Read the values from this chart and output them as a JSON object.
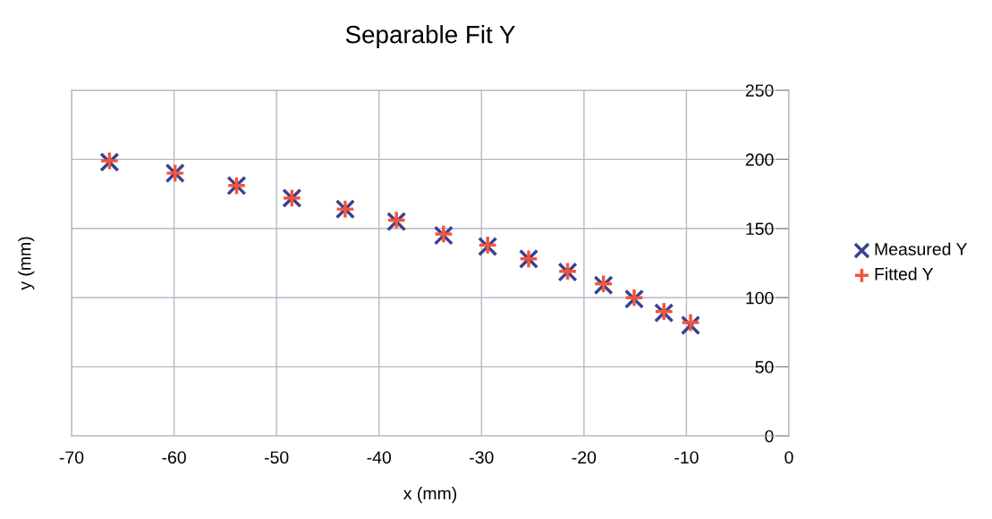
{
  "chart_data": {
    "type": "scatter",
    "title": "Separable Fit Y",
    "xlabel": "x (mm)",
    "ylabel": "y (mm)",
    "x": [
      -66.3,
      -59.9,
      -53.9,
      -48.5,
      -43.3,
      -38.3,
      -33.7,
      -29.4,
      -25.4,
      -21.6,
      -18.1,
      -15.1,
      -12.2,
      -9.6
    ],
    "series": [
      {
        "name": "Measured Y",
        "color": "#3b4190",
        "marker": "cross",
        "values": [
          198,
          190,
          181,
          172,
          164,
          155,
          145,
          137,
          128,
          118.5,
          109,
          99,
          89,
          80
        ]
      },
      {
        "name": "Fitted Y",
        "color": "#f4553a",
        "marker": "plus",
        "values": [
          199,
          190,
          181,
          172,
          164,
          156,
          146,
          138,
          128,
          119,
          110,
          100,
          90,
          82
        ]
      }
    ],
    "xlim": [
      -70,
      0
    ],
    "xticks": [
      -70,
      -60,
      -50,
      -40,
      -30,
      -20,
      -10,
      0
    ],
    "ylim": [
      0,
      250
    ],
    "yticks": [
      0,
      50,
      100,
      150,
      200,
      250
    ],
    "grid": true,
    "legend": "right"
  }
}
